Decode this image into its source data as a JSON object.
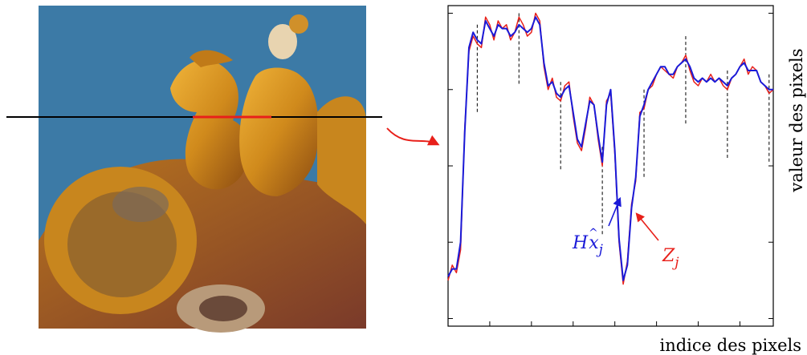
{
  "photo": {
    "subject": "glazed roof ornament figure riding a phoenix against blue sky",
    "sky_color": "#3c7aa6",
    "glaze_color": "#d08a1c"
  },
  "chart_data": {
    "type": "line",
    "xlabel": "indice des pixels",
    "ylabel": "valeur des pixels",
    "colors": {
      "Z": "#e8201a",
      "Hx": "#1a1ad8",
      "arrow": "#e8201a"
    },
    "x": [
      0,
      1,
      2,
      3,
      4,
      5,
      6,
      7,
      8,
      9,
      10,
      11,
      12,
      13,
      14,
      15,
      16,
      17,
      18,
      19,
      20,
      21,
      22,
      23,
      24,
      25,
      26,
      27,
      28,
      29,
      30,
      31,
      32,
      33,
      34,
      35,
      36,
      37,
      38,
      39,
      40,
      41,
      42,
      43,
      44,
      45,
      46,
      47,
      48,
      49,
      50,
      51,
      52,
      53,
      54,
      55,
      56,
      57,
      58,
      59,
      60,
      61,
      62,
      63,
      64,
      65,
      66,
      67,
      68,
      69,
      70,
      71,
      72,
      73,
      74,
      75,
      76,
      77,
      78
    ],
    "series": [
      {
        "id": "Z",
        "label_base": "Z",
        "label_sub": "j",
        "color": "#e8201a",
        "values": [
          0.3,
          0.34,
          0.32,
          0.38,
          0.7,
          0.9,
          0.94,
          0.92,
          0.91,
          0.99,
          0.97,
          0.93,
          0.98,
          0.96,
          0.97,
          0.93,
          0.95,
          0.99,
          0.97,
          0.94,
          0.95,
          1.0,
          0.98,
          0.86,
          0.8,
          0.83,
          0.78,
          0.77,
          0.81,
          0.82,
          0.73,
          0.66,
          0.64,
          0.7,
          0.78,
          0.76,
          0.67,
          0.6,
          0.77,
          0.79,
          0.63,
          0.4,
          0.29,
          0.35,
          0.5,
          0.56,
          0.74,
          0.75,
          0.8,
          0.81,
          0.84,
          0.86,
          0.85,
          0.84,
          0.83,
          0.86,
          0.87,
          0.89,
          0.85,
          0.82,
          0.81,
          0.83,
          0.82,
          0.84,
          0.82,
          0.83,
          0.81,
          0.8,
          0.83,
          0.84,
          0.86,
          0.88,
          0.84,
          0.86,
          0.85,
          0.82,
          0.81,
          0.79,
          0.8
        ]
      },
      {
        "id": "Hx",
        "label_base": "H",
        "label_hat": "x",
        "label_sub": "j",
        "color": "#1a1ad8",
        "values": [
          0.31,
          0.33,
          0.33,
          0.4,
          0.69,
          0.91,
          0.95,
          0.93,
          0.92,
          0.98,
          0.96,
          0.94,
          0.97,
          0.96,
          0.96,
          0.94,
          0.95,
          0.97,
          0.96,
          0.95,
          0.96,
          0.99,
          0.97,
          0.87,
          0.81,
          0.82,
          0.79,
          0.78,
          0.8,
          0.81,
          0.74,
          0.67,
          0.65,
          0.71,
          0.77,
          0.76,
          0.68,
          0.61,
          0.76,
          0.8,
          0.64,
          0.41,
          0.3,
          0.34,
          0.49,
          0.57,
          0.73,
          0.76,
          0.8,
          0.82,
          0.84,
          0.86,
          0.86,
          0.84,
          0.84,
          0.86,
          0.87,
          0.88,
          0.86,
          0.83,
          0.82,
          0.83,
          0.82,
          0.83,
          0.82,
          0.83,
          0.82,
          0.81,
          0.83,
          0.84,
          0.86,
          0.87,
          0.85,
          0.85,
          0.85,
          0.82,
          0.81,
          0.8,
          0.8
        ]
      }
    ],
    "segment_boundaries": [
      7,
      17,
      27,
      37,
      47,
      57,
      67,
      77
    ],
    "xlim": [
      0,
      78
    ],
    "ylim": [
      0.18,
      1.02
    ],
    "ticks": "unlabeled"
  }
}
